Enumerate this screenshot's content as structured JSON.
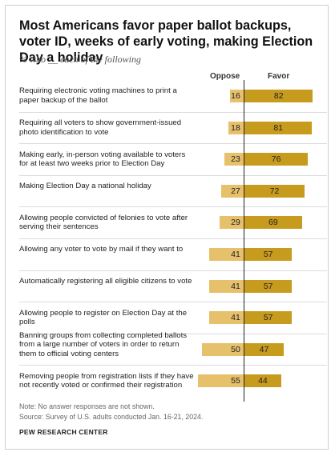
{
  "title": "Most Americans favor paper ballot backups, voter ID, weeks of early voting, making Election Day a holiday",
  "subtitle": "% who __ each of the following",
  "note": "Note: No answer responses are not shown.",
  "source": "Source: Survey of U.S. adults conducted Jan. 16-21, 2024.",
  "brand": "PEW RESEARCH CENTER",
  "chart_data": {
    "type": "bar",
    "orientation": "horizontal-diverging",
    "title": "Most Americans favor paper ballot backups, voter ID, weeks of early voting, making Election Day a holiday",
    "subtitle": "% who __ each of the following",
    "categories": [
      "Requiring electronic voting machines to print a paper backup of the ballot",
      "Requiring all voters to show government-issued photo identification to vote",
      "Making early, in-person voting available to voters for at least two weeks prior to Election Day",
      "Making Election Day a national holiday",
      "Allowing people convicted of felonies to vote after serving their sentences",
      "Allowing any voter to vote by mail if they want to",
      "Automatically registering all eligible citizens to vote",
      "Allowing people to register on Election Day at the polls",
      "Banning groups from collecting completed ballots from a large number of voters in order to return them to official voting centers",
      "Removing people from registration lists if they have not recently voted or confirmed their registration"
    ],
    "series": [
      {
        "name": "Oppose",
        "values": [
          16,
          18,
          23,
          27,
          29,
          41,
          41,
          41,
          50,
          55
        ],
        "color": "#e6c06a"
      },
      {
        "name": "Favor",
        "values": [
          82,
          81,
          76,
          72,
          69,
          57,
          57,
          57,
          47,
          44
        ],
        "color": "#c79b1d"
      }
    ],
    "legend": "top"
  }
}
